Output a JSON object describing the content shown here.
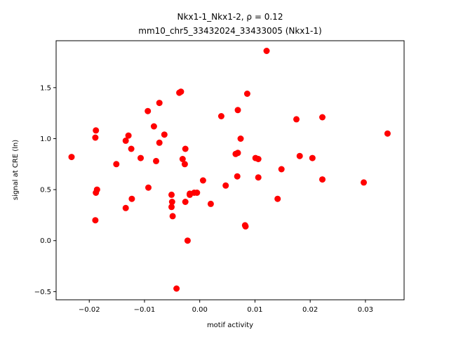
{
  "chart_data": {
    "type": "scatter",
    "title_line1": "Nkx1-1_Nkx1-2, ρ = 0.12",
    "title_line2": "mm10_chr5_33432024_33433005 (Nkx1-1)",
    "xlabel": "motif activity",
    "ylabel": "signal at CRE (ln)",
    "xlim": [
      -0.026,
      0.037
    ],
    "ylim": [
      -0.58,
      1.96
    ],
    "xticks": [
      {
        "value": -0.02,
        "label": "−0.02"
      },
      {
        "value": -0.01,
        "label": "−0.01"
      },
      {
        "value": 0.0,
        "label": "0.00"
      },
      {
        "value": 0.01,
        "label": "0.01"
      },
      {
        "value": 0.02,
        "label": "0.02"
      },
      {
        "value": 0.03,
        "label": "0.03"
      }
    ],
    "yticks": [
      {
        "value": -0.5,
        "label": "−0.5"
      },
      {
        "value": 0.0,
        "label": "0.0"
      },
      {
        "value": 0.5,
        "label": "0.5"
      },
      {
        "value": 1.0,
        "label": "1.0"
      },
      {
        "value": 1.5,
        "label": "1.5"
      }
    ],
    "grid": false,
    "marker_color": "#ff0000",
    "points": [
      {
        "x": 0.0121,
        "y": 1.86
      },
      {
        "x": -0.0034,
        "y": 1.46
      },
      {
        "x": -0.0037,
        "y": 1.45
      },
      {
        "x": 0.0086,
        "y": 1.44
      },
      {
        "x": -0.0073,
        "y": 1.35
      },
      {
        "x": -0.0094,
        "y": 1.27
      },
      {
        "x": 0.0069,
        "y": 1.28
      },
      {
        "x": 0.0039,
        "y": 1.22
      },
      {
        "x": 0.0222,
        "y": 1.21
      },
      {
        "x": 0.0175,
        "y": 1.19
      },
      {
        "x": -0.0083,
        "y": 1.12
      },
      {
        "x": -0.0188,
        "y": 1.08
      },
      {
        "x": 0.034,
        "y": 1.05
      },
      {
        "x": -0.0064,
        "y": 1.04
      },
      {
        "x": -0.0129,
        "y": 1.03
      },
      {
        "x": -0.0189,
        "y": 1.01
      },
      {
        "x": 0.0074,
        "y": 1.0
      },
      {
        "x": -0.0134,
        "y": 0.98
      },
      {
        "x": -0.0073,
        "y": 0.96
      },
      {
        "x": -0.0124,
        "y": 0.9
      },
      {
        "x": -0.0026,
        "y": 0.9
      },
      {
        "x": 0.0069,
        "y": 0.86
      },
      {
        "x": 0.0065,
        "y": 0.85
      },
      {
        "x": 0.0181,
        "y": 0.83
      },
      {
        "x": -0.0232,
        "y": 0.82
      },
      {
        "x": 0.0204,
        "y": 0.81
      },
      {
        "x": -0.0107,
        "y": 0.81
      },
      {
        "x": -0.0031,
        "y": 0.8
      },
      {
        "x": 0.0101,
        "y": 0.81
      },
      {
        "x": 0.0106,
        "y": 0.8
      },
      {
        "x": -0.0079,
        "y": 0.78
      },
      {
        "x": -0.0027,
        "y": 0.75
      },
      {
        "x": -0.0151,
        "y": 0.75
      },
      {
        "x": 0.0148,
        "y": 0.7
      },
      {
        "x": 0.0068,
        "y": 0.63
      },
      {
        "x": 0.0106,
        "y": 0.62
      },
      {
        "x": 0.0222,
        "y": 0.6
      },
      {
        "x": 0.0006,
        "y": 0.59
      },
      {
        "x": 0.0297,
        "y": 0.57
      },
      {
        "x": 0.0047,
        "y": 0.54
      },
      {
        "x": -0.0093,
        "y": 0.52
      },
      {
        "x": -0.0186,
        "y": 0.5
      },
      {
        "x": -0.0188,
        "y": 0.47
      },
      {
        "x": -0.001,
        "y": 0.47
      },
      {
        "x": -0.0005,
        "y": 0.47
      },
      {
        "x": -0.0018,
        "y": 0.46
      },
      {
        "x": -0.0051,
        "y": 0.45
      },
      {
        "x": -0.0018,
        "y": 0.45
      },
      {
        "x": 0.0141,
        "y": 0.41
      },
      {
        "x": -0.0123,
        "y": 0.41
      },
      {
        "x": -0.005,
        "y": 0.38
      },
      {
        "x": -0.0026,
        "y": 0.38
      },
      {
        "x": 0.002,
        "y": 0.36
      },
      {
        "x": -0.0051,
        "y": 0.33
      },
      {
        "x": -0.0134,
        "y": 0.32
      },
      {
        "x": -0.0049,
        "y": 0.24
      },
      {
        "x": -0.0189,
        "y": 0.2
      },
      {
        "x": 0.0082,
        "y": 0.15
      },
      {
        "x": 0.0083,
        "y": 0.14
      },
      {
        "x": -0.0022,
        "y": 0.0
      },
      {
        "x": -0.0042,
        "y": -0.47
      }
    ]
  }
}
